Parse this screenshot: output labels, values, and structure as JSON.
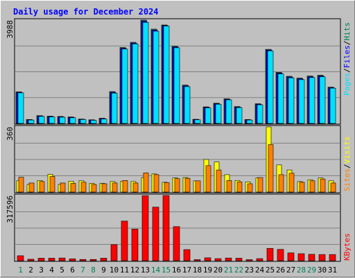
{
  "chart_data": [
    {
      "type": "bar",
      "title": "Daily usage for December 2024",
      "panel": "hits-files-pages",
      "ymax_label": "3988",
      "ylim": [
        0,
        3988
      ],
      "categories": [
        "1",
        "2",
        "3",
        "4",
        "5",
        "6",
        "7",
        "8",
        "9",
        "10",
        "11",
        "12",
        "13",
        "14",
        "15",
        "16",
        "17",
        "18",
        "19",
        "20",
        "21",
        "22",
        "23",
        "24",
        "25",
        "26",
        "27",
        "28",
        "29",
        "30",
        "31"
      ],
      "series": [
        {
          "name": "Hits",
          "color": "#00805c",
          "values": [
            1220,
            150,
            300,
            280,
            270,
            250,
            170,
            140,
            200,
            1230,
            2930,
            3130,
            3990,
            3640,
            3800,
            2980,
            1480,
            160,
            640,
            780,
            950,
            650,
            150,
            760,
            2860,
            1970,
            1820,
            1750,
            1830,
            1860,
            1400
          ]
        },
        {
          "name": "Files",
          "color": "#0000ff",
          "values": [
            1200,
            140,
            285,
            265,
            255,
            235,
            160,
            130,
            185,
            1200,
            2900,
            3100,
            3950,
            3600,
            3780,
            2950,
            1450,
            150,
            620,
            760,
            930,
            630,
            140,
            740,
            2830,
            1940,
            1790,
            1720,
            1800,
            1830,
            1380
          ]
        },
        {
          "name": "Pages",
          "color": "#00e0ff",
          "values": [
            1180,
            130,
            270,
            250,
            240,
            220,
            150,
            120,
            170,
            1170,
            2870,
            3070,
            3900,
            3560,
            3760,
            2920,
            1420,
            140,
            600,
            740,
            910,
            610,
            130,
            720,
            2800,
            1910,
            1760,
            1690,
            1770,
            1800,
            1360
          ]
        }
      ],
      "legend": [
        "Pages",
        "/",
        "Files",
        "/",
        "Hits"
      ]
    },
    {
      "type": "bar",
      "panel": "visits-sites",
      "ymax_label": "360",
      "ylim": [
        0,
        360
      ],
      "categories": [
        "1",
        "2",
        "3",
        "4",
        "5",
        "6",
        "7",
        "8",
        "9",
        "10",
        "11",
        "12",
        "13",
        "14",
        "15",
        "16",
        "17",
        "18",
        "19",
        "20",
        "21",
        "22",
        "23",
        "24",
        "25",
        "26",
        "27",
        "28",
        "29",
        "30",
        "31"
      ],
      "series": [
        {
          "name": "Visits",
          "color": "#ffff00",
          "values": [
            62,
            42,
            64,
            98,
            42,
            60,
            62,
            48,
            48,
            58,
            60,
            58,
            80,
            100,
            54,
            78,
            80,
            62,
            180,
            166,
            96,
            64,
            56,
            78,
            360,
            150,
            122,
            58,
            68,
            78,
            62
          ]
        },
        {
          "name": "Sites",
          "color": "#ff8000",
          "values": [
            82,
            50,
            58,
            86,
            50,
            48,
            54,
            42,
            46,
            50,
            64,
            50,
            106,
            96,
            52,
            74,
            76,
            62,
            146,
            122,
            64,
            56,
            46,
            80,
            262,
            96,
            104,
            54,
            62,
            72,
            50
          ]
        }
      ],
      "legend": [
        "Sites",
        "/",
        "Visits"
      ]
    },
    {
      "type": "bar",
      "panel": "kbytes",
      "ymax_label": "317596",
      "ylim": [
        0,
        317596
      ],
      "categories": [
        "1",
        "2",
        "3",
        "4",
        "5",
        "6",
        "7",
        "8",
        "9",
        "10",
        "11",
        "12",
        "13",
        "14",
        "15",
        "16",
        "17",
        "18",
        "19",
        "20",
        "21",
        "22",
        "23",
        "24",
        "25",
        "26",
        "27",
        "28",
        "29",
        "30",
        "31"
      ],
      "series": [
        {
          "name": "KBytes",
          "color": "#ff0000",
          "values": [
            24000,
            7000,
            12000,
            12000,
            13000,
            9000,
            6000,
            6000,
            12000,
            78000,
            193000,
            154000,
            317000,
            261000,
            326000,
            166000,
            54000,
            5000,
            14000,
            10000,
            13000,
            12000,
            5000,
            10000,
            60000,
            55000,
            38000,
            34000,
            31000,
            30000,
            30000
          ]
        }
      ],
      "legend": [
        "KBytes"
      ]
    }
  ],
  "day_labels": [
    "1",
    "2",
    "3",
    "4",
    "5",
    "6",
    "7",
    "8",
    "9",
    "10",
    "11",
    "12",
    "13",
    "14",
    "15",
    "16",
    "17",
    "18",
    "19",
    "20",
    "21",
    "22",
    "23",
    "24",
    "25",
    "26",
    "27",
    "28",
    "29",
    "30",
    "31"
  ],
  "weekend_days": [
    "1",
    "7",
    "8",
    "14",
    "15",
    "21",
    "22",
    "28",
    "29"
  ],
  "colors": {
    "background": "#c0c0c0",
    "title": "#0000ff",
    "weekday_label": "#000000",
    "weekend_label": "#00805c",
    "grid": "#808080",
    "pages": "#00e0ff",
    "files": "#0000ff",
    "hits": "#00805c",
    "sites": "#ff8000",
    "visits": "#ffff00",
    "kbytes": "#ff0000"
  }
}
